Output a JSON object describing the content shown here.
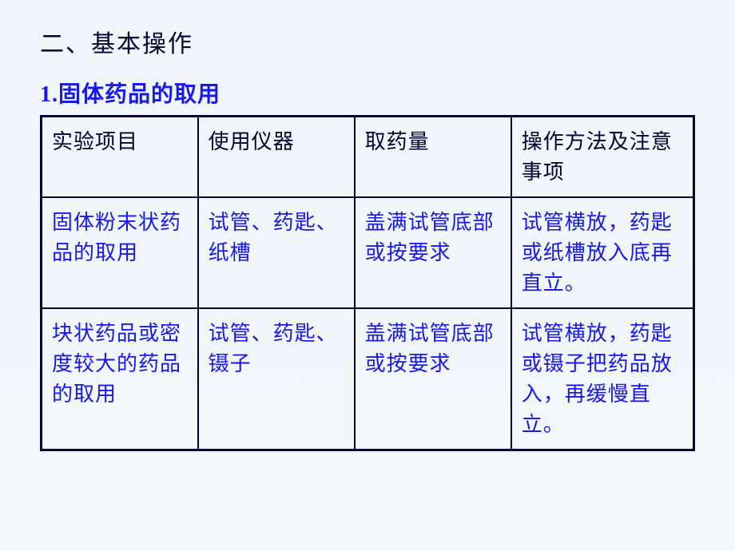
{
  "heading_section": "二、基本操作",
  "sub_heading": "1.固体药品的取用",
  "table": {
    "headers": {
      "col1": "实验项目",
      "col2": "使用仪器",
      "col3": "取药量",
      "col4": "操作方法及注意事项"
    },
    "rows": [
      {
        "col1": "固体粉末状药品的取用",
        "col2": "试管、药匙、纸槽",
        "col3": "盖满试管底部或按要求",
        "col4": "试管横放，药匙或纸槽放入底再直立。"
      },
      {
        "col1": "块状药品或密度较大的药品的取用",
        "col2": "试管、药匙、镊子",
        "col3": "盖满试管底部或按要求",
        "col4": "试管横放，药匙或镊子把药品放入，再缓慢直立。"
      }
    ]
  },
  "style": {
    "background_color_top": "#f0f6fb",
    "background_color_bottom": "#f2f7fc",
    "heading_color": "#000033",
    "body_color": "#1818e8",
    "border_color": "#000033",
    "heading_fontsize": 30,
    "subheading_fontsize": 28,
    "cell_fontsize": 26,
    "border_width_outer": 3,
    "border_width_inner": 2,
    "column_widths": [
      "24%",
      "24%",
      "24%",
      "28%"
    ]
  }
}
